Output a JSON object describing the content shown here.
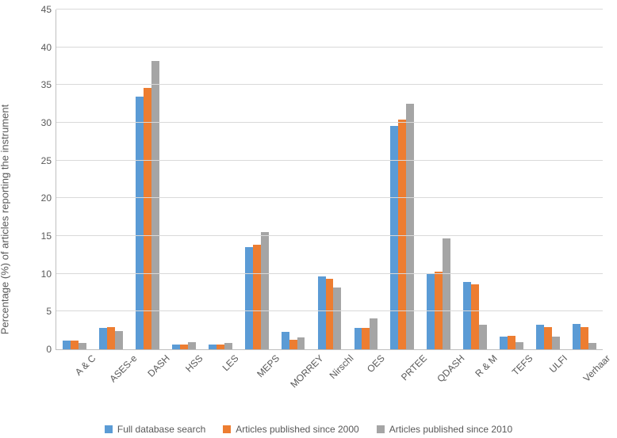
{
  "chart": {
    "type": "bar",
    "y_axis_label": "Percentage (%) of articles reporting the instrument",
    "label_fontsize": 13,
    "tick_fontsize": 12,
    "background_color": "#ffffff",
    "grid_color": "#d9d9d9",
    "axis_color": "#bfbfbf",
    "text_color": "#595959",
    "ylim": [
      0,
      45
    ],
    "ytick_step": 5,
    "bar_group_gap_ratio": 0.35,
    "categories": [
      "A & C",
      "ASES-e",
      "DASH",
      "HSS",
      "LES",
      "MEPS",
      "MORREY",
      "Nirschl",
      "OES",
      "PRTEE",
      "QDASH",
      "R & M",
      "TEFS",
      "ULFI",
      "Verhaar"
    ],
    "series": [
      {
        "name": "Full database search",
        "color": "#5b9bd5",
        "values": [
          1.2,
          2.8,
          33.5,
          0.6,
          0.6,
          13.5,
          2.3,
          9.6,
          2.8,
          29.6,
          10.0,
          8.9,
          1.7,
          3.3,
          3.4
        ]
      },
      {
        "name": "Articles published since 2000",
        "color": "#ed7d31",
        "values": [
          1.2,
          2.9,
          34.6,
          0.6,
          0.6,
          13.8,
          1.3,
          9.3,
          2.8,
          30.4,
          10.3,
          8.6,
          1.8,
          2.9,
          2.9
        ]
      },
      {
        "name": "Articles published since 2010",
        "color": "#a5a5a5",
        "values": [
          0.8,
          2.4,
          38.2,
          0.9,
          0.8,
          15.5,
          1.6,
          8.2,
          4.1,
          32.5,
          14.7,
          3.3,
          0.9,
          1.7,
          0.8
        ]
      }
    ]
  }
}
